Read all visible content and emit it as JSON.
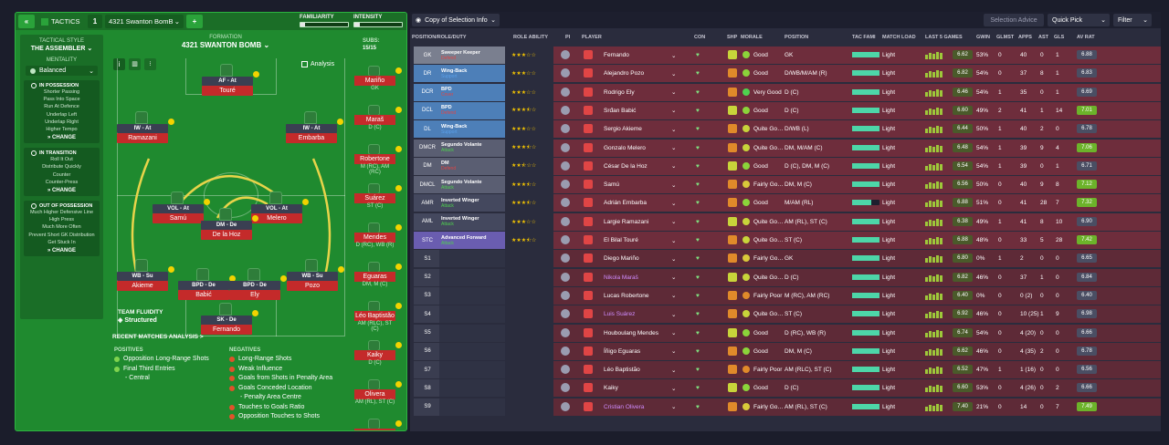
{
  "tactics": {
    "header": {
      "collapse_icon": "double-chevron-left-icon",
      "label": "TACTICS",
      "slot": "1",
      "tactic_name": "4321 Swanton BomB",
      "add_label": "+",
      "familiarity_label": "FAMILIARITY",
      "intensity_label": "INTENSITY",
      "familiarity_value": 0.1,
      "intensity_value": 0.12
    },
    "formation_label": "FORMATION",
    "formation_name": "4321 SWANTON BOMB",
    "subs_label": "SUBS:",
    "subs_count": "15/15",
    "analysis_label": "Analysis",
    "style": {
      "heading": "TACTICAL STYLE",
      "name": "THE ASSEMBLER",
      "mentality_label": "MENTALITY",
      "mentality": "Balanced",
      "in_possession": {
        "title": "IN POSSESSION",
        "items": [
          "Shorter Passing",
          "Pass Into Space",
          "Run At Defence",
          "Underlap Left",
          "Underlap Right",
          "Higher Tempo"
        ],
        "change": "CHANGE"
      },
      "in_transition": {
        "title": "IN TRANSITION",
        "items": [
          "Roll It Out",
          "Distribute Quickly",
          "Counter",
          "Counter-Press"
        ],
        "change": "CHANGE"
      },
      "out_possession": {
        "title": "OUT OF POSSESSION",
        "items": [
          "Much Higher Defensive Line",
          "High Press",
          "Much More Often",
          "Prevent Short GK Distribution",
          "Get Stuck In"
        ],
        "change": "CHANGE"
      }
    },
    "players": [
      {
        "role": "AF - At",
        "name": "Touré"
      },
      {
        "role": "IW - At",
        "name": "Ramazani"
      },
      {
        "role": "IW - At",
        "name": "Embarba"
      },
      {
        "role": "VOL - At",
        "name": "Samú"
      },
      {
        "role": "VOL - At",
        "name": "Melero"
      },
      {
        "role": "DM - De",
        "name": "De la Hoz"
      },
      {
        "role": "WB - Su",
        "name": "Akieme"
      },
      {
        "role": "BPD - De",
        "name": "Babić"
      },
      {
        "role": "BPD - De",
        "name": "Ely"
      },
      {
        "role": "WB - Su",
        "name": "Pozo"
      },
      {
        "role": "SK - De",
        "name": "Fernando"
      }
    ],
    "subs": [
      {
        "name": "Mariño",
        "pos": "GK"
      },
      {
        "name": "Maraš",
        "pos": "D (C)"
      },
      {
        "name": "Robertone",
        "pos": "M (RC), AM (RC)"
      },
      {
        "name": "Suárez",
        "pos": "ST (C)"
      },
      {
        "name": "Mendes",
        "pos": "D (RC), WB (R)"
      },
      {
        "name": "Eguaras",
        "pos": "DM, M (C)"
      },
      {
        "name": "Léo Baptistão",
        "pos": "AM (RLC), ST (C)"
      },
      {
        "name": "Kaiky",
        "pos": "D (C)"
      },
      {
        "name": "Olivera",
        "pos": "AM (RL), ST (C)"
      },
      {
        "name": "Duque Sousa",
        "pos": ""
      }
    ],
    "team_fluidity_label": "TEAM FLUIDITY",
    "team_fluidity": "Structured",
    "rma": {
      "title": "RECENT MATCHES ANALYSIS >",
      "pos_title": "POSITIVES",
      "neg_title": "NEGATIVES",
      "positives": [
        "Opposition Long-Range Shots",
        "Final Third Entries",
        "- Central"
      ],
      "negatives": [
        "Long-Range Shots",
        "Weak Influence",
        "Goals from Shots in Penalty Area",
        "Goals Conceded Location",
        "- Penalty Area Centre",
        "Touches to Goals Ratio",
        "Opposition Touches to Shots"
      ]
    }
  },
  "selection": {
    "toolbar": {
      "view_label": "Copy of Selection Info",
      "advice": "Selection Advice",
      "quick_pick": "Quick Pick",
      "filter": "Filter"
    },
    "columns": [
      "POSITION/ROLE/DUTY",
      "ROLE ABILITY",
      "PI",
      "PLAYER",
      "CON",
      "SHP",
      "MORALE",
      "POSITION",
      "TAC FAMI",
      "MATCH LOAD",
      "LAST 5 GAMES",
      "GWIN",
      "GLMST",
      "APPS",
      "AST",
      "GLS",
      "AV RAT"
    ],
    "rows": [
      {
        "pos": "GK",
        "role": "Sweeper Keeper",
        "duty": "Defend",
        "dc": "#e04545",
        "stars": 3,
        "player": "Fernando",
        "morale": "Good",
        "position": "GK",
        "load": "Light",
        "last5": "6.62",
        "gwin": "53%",
        "glmst": "0",
        "apps": "40",
        "ast": "0",
        "gls": "1",
        "av": "6.88"
      },
      {
        "pos": "DR",
        "role": "Wing-Back",
        "duty": "Support",
        "dc": "#5aa0ea",
        "stars": 3,
        "player": "Alejandro Pozo",
        "morale": "Good",
        "position": "D/WB/M/AM (R)",
        "load": "Light",
        "last5": "6.82",
        "gwin": "54%",
        "glmst": "0",
        "apps": "37",
        "ast": "8",
        "gls": "1",
        "av": "6.83"
      },
      {
        "pos": "DCR",
        "role": "BPD",
        "duty": "Cover",
        "dc": "#e04545",
        "stars": 3,
        "player": "Rodrigo Ely",
        "morale": "Very Good",
        "position": "D (C)",
        "load": "Light",
        "last5": "6.46",
        "gwin": "54%",
        "glmst": "1",
        "apps": "35",
        "ast": "0",
        "gls": "1",
        "av": "6.69"
      },
      {
        "pos": "DCL",
        "role": "BPD",
        "duty": "Defend",
        "dc": "#e04545",
        "stars": 3.5,
        "player": "Srđan Babić",
        "morale": "Good",
        "position": "D (C)",
        "load": "Light",
        "last5": "6.60",
        "gwin": "49%",
        "glmst": "2",
        "apps": "41",
        "ast": "1",
        "gls": "14",
        "av": "7.01"
      },
      {
        "pos": "DL",
        "role": "Wing-Back",
        "duty": "Support",
        "dc": "#5aa0ea",
        "stars": 3,
        "player": "Sergio Akieme",
        "morale": "Quite Go…",
        "position": "D/WB (L)",
        "load": "Light",
        "last5": "6.44",
        "gwin": "50%",
        "glmst": "1",
        "apps": "40",
        "ast": "2",
        "gls": "0",
        "av": "6.78"
      },
      {
        "pos": "DMCR",
        "role": "Segundo Volante",
        "duty": "Attack",
        "dc": "#4fd14f",
        "stars": 3.5,
        "player": "Gonzalo Melero",
        "morale": "Quite Go…",
        "position": "DM, M/AM (C)",
        "load": "Light",
        "last5": "6.48",
        "gwin": "54%",
        "glmst": "1",
        "apps": "39",
        "ast": "9",
        "gls": "4",
        "av": "7.06"
      },
      {
        "pos": "DM",
        "role": "DM",
        "duty": "Defend",
        "dc": "#e04545",
        "stars": 2.5,
        "player": "César De la Hoz",
        "morale": "Good",
        "position": "D (C), DM, M (C)",
        "load": "Light",
        "last5": "6.54",
        "gwin": "54%",
        "glmst": "1",
        "apps": "39",
        "ast": "0",
        "gls": "1",
        "av": "6.71"
      },
      {
        "pos": "DMCL",
        "role": "Segundo Volante",
        "duty": "Attack",
        "dc": "#4fd14f",
        "stars": 3.5,
        "player": "Samú",
        "morale": "Fairly Go…",
        "position": "DM, M (C)",
        "load": "Light",
        "last5": "6.56",
        "gwin": "50%",
        "glmst": "0",
        "apps": "40",
        "ast": "9",
        "gls": "8",
        "av": "7.12"
      },
      {
        "pos": "AMR",
        "role": "Inverted Winger",
        "duty": "Attack",
        "dc": "#4fd14f",
        "stars": 3.5,
        "player": "Adrián Embarba",
        "morale": "Good",
        "position": "M/AM (RL)",
        "load": "Light",
        "last5": "6.88",
        "gwin": "51%",
        "glmst": "0",
        "apps": "41",
        "ast": "28",
        "gls": "7",
        "av": "7.32"
      },
      {
        "pos": "AML",
        "role": "Inverted Winger",
        "duty": "Attack",
        "dc": "#4fd14f",
        "stars": 3,
        "player": "Largie Ramazani",
        "morale": "Quite Go…",
        "position": "AM (RL), ST (C)",
        "load": "Light",
        "last5": "6.38",
        "gwin": "49%",
        "glmst": "1",
        "apps": "41",
        "ast": "8",
        "gls": "10",
        "av": "6.90"
      },
      {
        "pos": "STC",
        "role": "Advanced Forward",
        "duty": "Attack",
        "dc": "#4fd14f",
        "stars": 3.5,
        "player": "El Bilal Touré",
        "morale": "Quite Go…",
        "position": "ST (C)",
        "load": "Light",
        "last5": "6.88",
        "gwin": "48%",
        "glmst": "0",
        "apps": "33",
        "ast": "5",
        "gls": "28",
        "av": "7.42"
      },
      {
        "pos": "S1",
        "role": "",
        "duty": "",
        "dc": "",
        "stars": 0,
        "player": "Diego Mariño",
        "morale": "Fairly Go…",
        "position": "GK",
        "load": "Light",
        "last5": "6.80",
        "gwin": "0%",
        "glmst": "1",
        "apps": "2",
        "ast": "0",
        "gls": "0",
        "av": "6.65"
      },
      {
        "pos": "S2",
        "role": "",
        "duty": "",
        "dc": "",
        "stars": 0,
        "player": "Nikola Maraš",
        "morale": "Quite Go…",
        "position": "D (C)",
        "load": "Light",
        "last5": "6.82",
        "gwin": "46%",
        "glmst": "0",
        "apps": "37",
        "ast": "1",
        "gls": "0",
        "av": "6.84"
      },
      {
        "pos": "S3",
        "role": "",
        "duty": "",
        "dc": "",
        "stars": 0,
        "player": "Lucas Robertone",
        "morale": "Fairly Poor",
        "position": "M (RC), AM (RC)",
        "load": "Light",
        "last5": "6.40",
        "gwin": "0%",
        "glmst": "0",
        "apps": "0 (2)",
        "ast": "0",
        "gls": "0",
        "av": "6.40"
      },
      {
        "pos": "S4",
        "role": "",
        "duty": "",
        "dc": "",
        "stars": 0,
        "player": "Luis Suárez",
        "morale": "Quite Go…",
        "position": "ST (C)",
        "load": "Light",
        "last5": "6.92",
        "gwin": "46%",
        "glmst": "0",
        "apps": "10 (25)",
        "ast": "1",
        "gls": "9",
        "av": "6.98"
      },
      {
        "pos": "S5",
        "role": "",
        "duty": "",
        "dc": "",
        "stars": 0,
        "player": "Houboulang Mendes",
        "morale": "Good",
        "position": "D (RC), WB (R)",
        "load": "Light",
        "last5": "6.74",
        "gwin": "54%",
        "glmst": "0",
        "apps": "4 (20)",
        "ast": "0",
        "gls": "0",
        "av": "6.66"
      },
      {
        "pos": "S6",
        "role": "",
        "duty": "",
        "dc": "",
        "stars": 0,
        "player": "Íñigo Eguaras",
        "morale": "Good",
        "position": "DM, M (C)",
        "load": "Light",
        "last5": "6.62",
        "gwin": "46%",
        "glmst": "0",
        "apps": "4 (35)",
        "ast": "2",
        "gls": "0",
        "av": "6.78"
      },
      {
        "pos": "S7",
        "role": "",
        "duty": "",
        "dc": "",
        "stars": 0,
        "player": "Léo Baptistão",
        "morale": "Fairly Poor",
        "position": "AM (RLC), ST (C)",
        "load": "Light",
        "last5": "6.52",
        "gwin": "47%",
        "glmst": "1",
        "apps": "1 (16)",
        "ast": "0",
        "gls": "0",
        "av": "6.56"
      },
      {
        "pos": "S8",
        "role": "",
        "duty": "",
        "dc": "",
        "stars": 0,
        "player": "Kaiky",
        "morale": "Good",
        "position": "D (C)",
        "load": "Light",
        "last5": "6.60",
        "gwin": "53%",
        "glmst": "0",
        "apps": "4 (26)",
        "ast": "0",
        "gls": "2",
        "av": "6.66"
      },
      {
        "pos": "S9",
        "role": "",
        "duty": "",
        "dc": "",
        "stars": 0,
        "player": "Cristian Olivera",
        "morale": "Fairly Go…",
        "position": "AM (RL), ST (C)",
        "load": "Light",
        "last5": "7.40",
        "gwin": "21%",
        "glmst": "0",
        "apps": "14",
        "ast": "0",
        "gls": "7",
        "av": "7.49"
      }
    ]
  }
}
